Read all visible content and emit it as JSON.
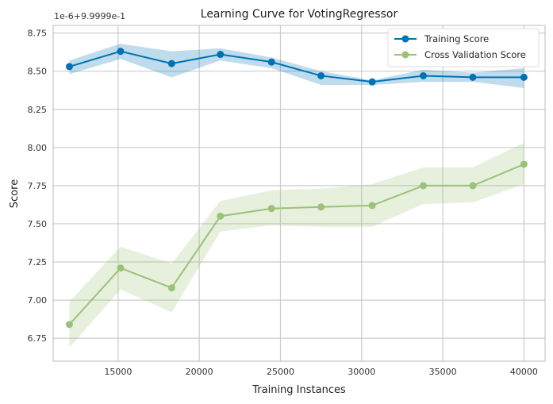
{
  "chart_data": {
    "type": "line",
    "title": "Learning Curve for VotingRegressor",
    "xlabel": "Training Instances",
    "ylabel": "Score",
    "y_offset_label": "1e-6+9.9999e-1",
    "xlim": [
      11000,
      41300
    ],
    "ylim": [
      6.6,
      8.8
    ],
    "xticks": [
      15000,
      20000,
      25000,
      30000,
      35000,
      40000
    ],
    "yticks": [
      6.75,
      7.0,
      7.25,
      7.5,
      7.75,
      8.0,
      8.25,
      8.5,
      8.75
    ],
    "x": [
      12000,
      15150,
      18300,
      21300,
      24450,
      27500,
      30650,
      33800,
      36850,
      40000
    ],
    "series": [
      {
        "name": "Training Score",
        "color": "#0072b2",
        "band_color": "#0072b2",
        "values": [
          8.53,
          8.63,
          8.55,
          8.61,
          8.56,
          8.47,
          8.43,
          8.47,
          8.46,
          8.46
        ],
        "upper": [
          8.57,
          8.68,
          8.63,
          8.65,
          8.59,
          8.5,
          8.44,
          8.51,
          8.49,
          8.52
        ],
        "lower": [
          8.48,
          8.58,
          8.46,
          8.57,
          8.52,
          8.41,
          8.41,
          8.43,
          8.43,
          8.39
        ]
      },
      {
        "name": "Cross Validation Score",
        "color": "#9ac278",
        "band_color": "#9ac278",
        "values": [
          6.84,
          7.21,
          7.08,
          7.55,
          7.6,
          7.61,
          7.62,
          7.75,
          7.75,
          7.89
        ],
        "upper": [
          6.99,
          7.35,
          7.24,
          7.65,
          7.72,
          7.73,
          7.76,
          7.87,
          7.87,
          8.03
        ],
        "lower": [
          6.69,
          7.07,
          6.92,
          7.45,
          7.49,
          7.48,
          7.48,
          7.63,
          7.64,
          7.76
        ]
      }
    ],
    "grid": true,
    "legend_position": "top-right"
  }
}
